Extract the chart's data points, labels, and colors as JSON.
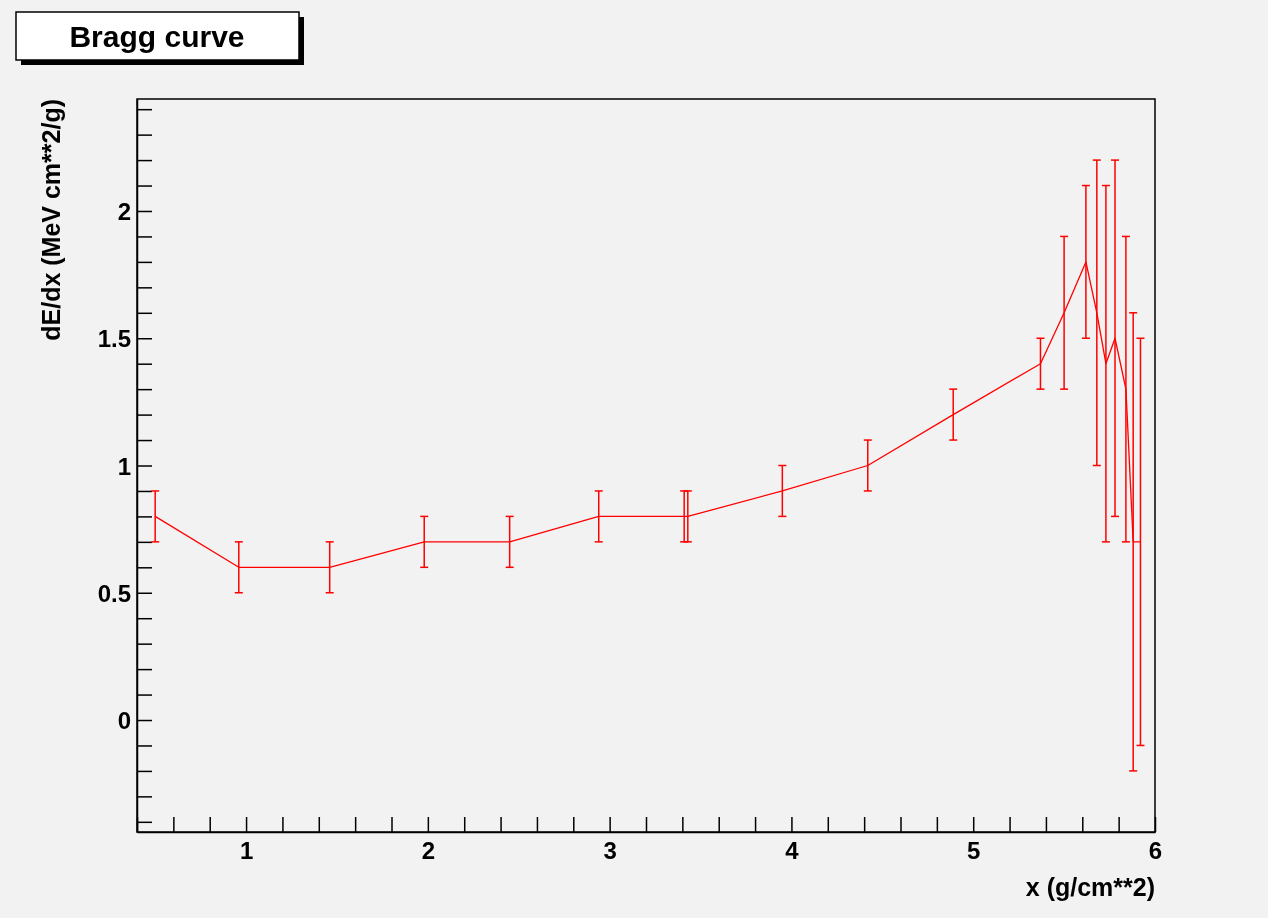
{
  "chart_data": {
    "type": "line",
    "title": "Bragg curve",
    "xlabel": "x (g/cm**2)",
    "ylabel": "dE/dx (MeV cm**2/g)",
    "x": [
      0.5,
      0.96,
      1.46,
      1.98,
      2.45,
      2.94,
      3.41,
      3.43,
      3.95,
      4.42,
      4.89,
      5.37,
      5.5,
      5.62,
      5.68,
      5.73,
      5.78,
      5.84,
      5.88,
      5.92
    ],
    "series": [
      {
        "color": "#ff0000",
        "values": [
          0.8,
          0.6,
          0.6,
          0.7,
          0.7,
          0.8,
          0.8,
          0.8,
          0.9,
          1.0,
          1.2,
          1.4,
          1.6,
          1.8,
          1.6,
          1.4,
          1.5,
          1.3,
          0.7,
          0.7
        ],
        "errors": [
          0.1,
          0.1,
          0.1,
          0.1,
          0.1,
          0.1,
          0.1,
          0.1,
          0.1,
          0.1,
          0.1,
          0.1,
          0.3,
          0.3,
          0.6,
          0.7,
          0.7,
          0.6,
          0.9,
          0.8
        ]
      }
    ],
    "xlim": [
      0.4,
      6.0
    ],
    "ylim": [
      -0.44,
      2.44
    ],
    "xticks": [
      {
        "value": 0.4,
        "label": null
      },
      {
        "value": 0.6,
        "label": null
      },
      {
        "value": 0.8,
        "label": null
      },
      1,
      {
        "value": 1.2,
        "label": null
      },
      {
        "value": 1.4,
        "label": null
      },
      {
        "value": 1.6,
        "label": null
      },
      {
        "value": 1.8,
        "label": null
      },
      2,
      {
        "value": 2.2,
        "label": null
      },
      {
        "value": 2.4,
        "label": null
      },
      {
        "value": 2.6,
        "label": null
      },
      {
        "value": 2.8,
        "label": null
      },
      3,
      {
        "value": 3.2,
        "label": null
      },
      {
        "value": 3.4,
        "label": null
      },
      {
        "value": 3.6,
        "label": null
      },
      {
        "value": 3.8,
        "label": null
      },
      4,
      {
        "value": 4.2,
        "label": null
      },
      {
        "value": 4.4,
        "label": null
      },
      {
        "value": 4.6,
        "label": null
      },
      {
        "value": 4.8,
        "label": null
      },
      5,
      {
        "value": 5.2,
        "label": null
      },
      {
        "value": 5.4,
        "label": null
      },
      {
        "value": 5.6,
        "label": null
      },
      {
        "value": 5.8,
        "label": null
      },
      6
    ],
    "yticks": [
      {
        "value": -0.4,
        "label": null
      },
      {
        "value": -0.3,
        "label": null
      },
      {
        "value": -0.2,
        "label": null
      },
      {
        "value": -0.1,
        "label": null
      },
      0,
      {
        "value": 0.1,
        "label": null
      },
      {
        "value": 0.2,
        "label": null
      },
      {
        "value": 0.3,
        "label": null
      },
      {
        "value": 0.4,
        "label": null
      },
      0.5,
      {
        "value": 0.6,
        "label": null
      },
      {
        "value": 0.7,
        "label": null
      },
      {
        "value": 0.8,
        "label": null
      },
      {
        "value": 0.9,
        "label": null
      },
      1,
      {
        "value": 1.1,
        "label": null
      },
      {
        "value": 1.2,
        "label": null
      },
      {
        "value": 1.3,
        "label": null
      },
      {
        "value": 1.4,
        "label": null
      },
      1.5,
      {
        "value": 1.6,
        "label": null
      },
      {
        "value": 1.7,
        "label": null
      },
      {
        "value": 1.8,
        "label": null
      },
      {
        "value": 1.9,
        "label": null
      },
      2,
      {
        "value": 2.1,
        "label": null
      },
      {
        "value": 2.2,
        "label": null
      },
      {
        "value": 2.3,
        "label": null
      },
      {
        "value": 2.4,
        "label": null
      }
    ],
    "grid": false,
    "marker": "none",
    "line_style": "solid"
  }
}
